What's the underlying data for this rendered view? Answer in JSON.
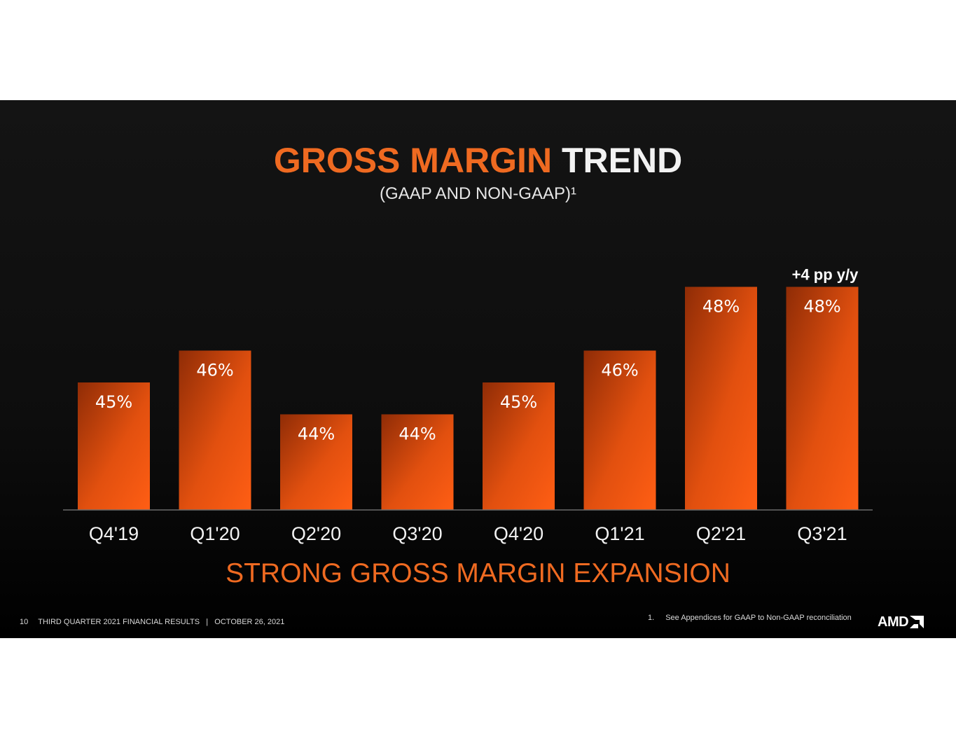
{
  "slide": {
    "title_accent": "GROSS MARGIN",
    "title_plain": "TREND",
    "subtitle": "(GAAP AND NON-GAAP)¹",
    "tagline": "STRONG GROSS MARGIN EXPANSION",
    "footer": {
      "page_number": "10",
      "text": "THIRD QUARTER 2021 FINANCIAL RESULTS   |   OCTOBER 26, 2021"
    },
    "footnote": {
      "number": "1.",
      "text": "See Appendices for GAAP to Non-GAAP reconciliation"
    },
    "logo_text": "AMD",
    "colors": {
      "accent": "#ef6a21",
      "bar_dark": "#8f2c06",
      "bar_light": "#ff5e14",
      "background": "#0d0d0d"
    }
  },
  "chart_data": {
    "type": "bar",
    "title": "GROSS MARGIN TREND",
    "subtitle": "(GAAP AND NON-GAAP)¹",
    "categories": [
      "Q4'19",
      "Q1'20",
      "Q2'20",
      "Q3'20",
      "Q4'20",
      "Q1'21",
      "Q2'21",
      "Q3'21"
    ],
    "values": [
      45,
      46,
      44,
      44,
      45,
      46,
      48,
      48
    ],
    "data_labels": [
      "45%",
      "46%",
      "44%",
      "44%",
      "45%",
      "46%",
      "48%",
      "48%"
    ],
    "unit": "%",
    "ylim": [
      40,
      48
    ],
    "annotation": {
      "category": "Q3'21",
      "text": "+4 pp y/y"
    },
    "grid": false,
    "legend": "none",
    "xlabel": "",
    "ylabel": ""
  }
}
